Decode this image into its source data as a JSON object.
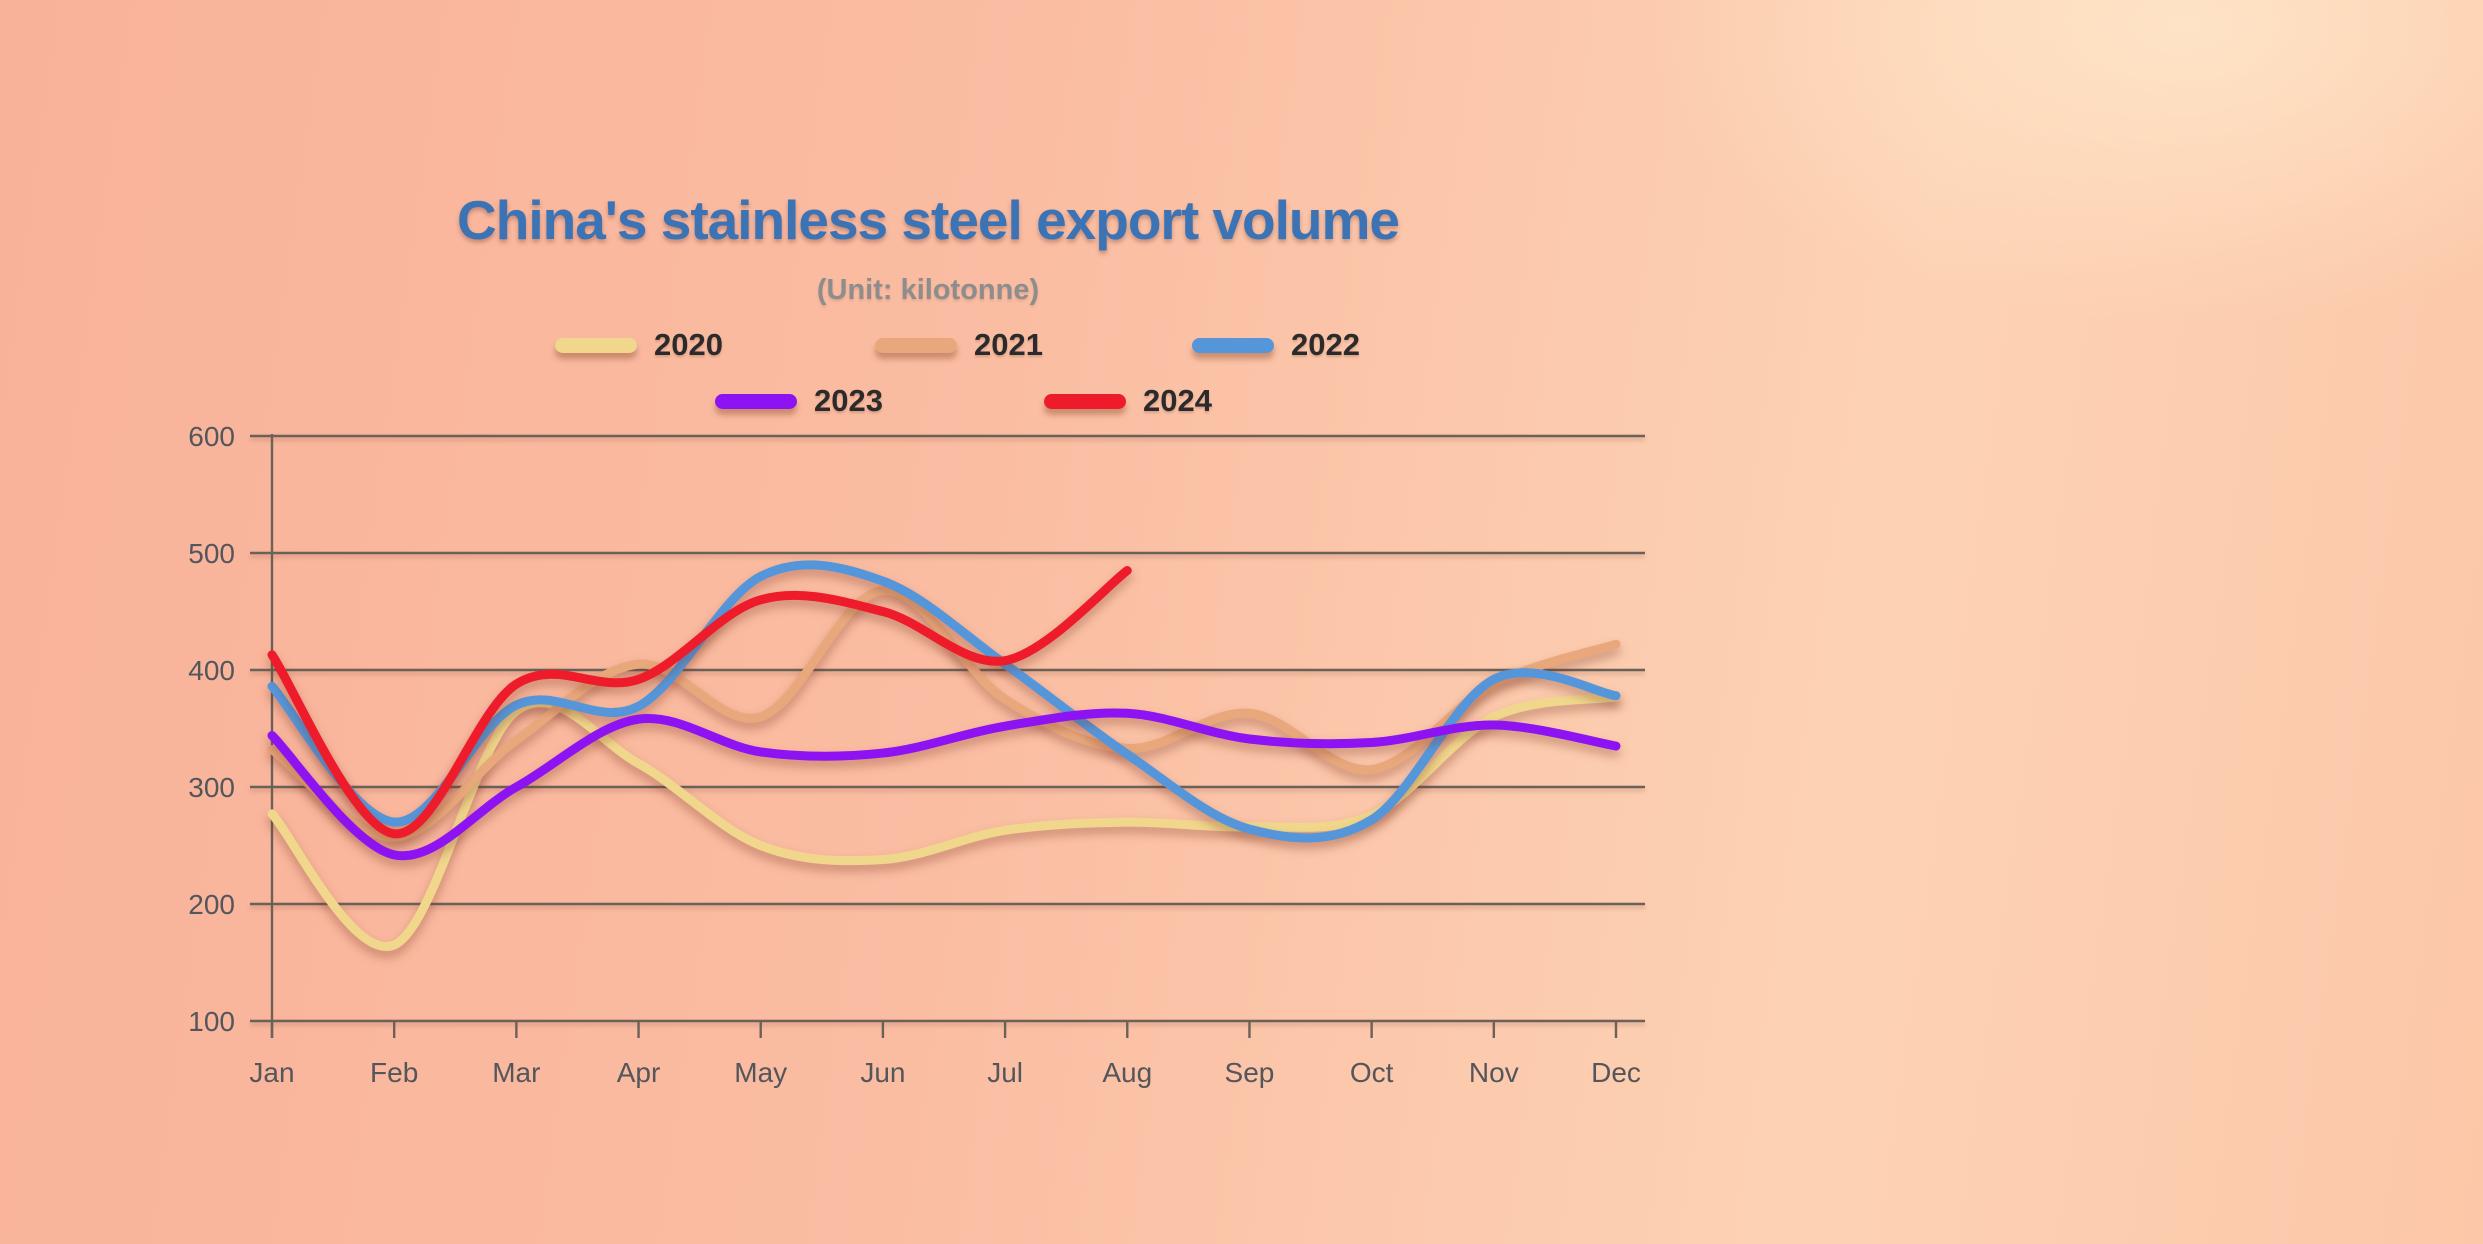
{
  "chart": {
    "title": "China's stainless steel export volume",
    "subtitle": "(Unit: kilotonne)"
  },
  "chart_data": {
    "type": "line",
    "title": "China's stainless steel export volume",
    "subtitle": "(Unit: kilotonne)",
    "xlabel": "",
    "ylabel": "",
    "categories": [
      "Jan",
      "Feb",
      "Mar",
      "Apr",
      "May",
      "Jun",
      "Jul",
      "Aug",
      "Sep",
      "Oct",
      "Nov",
      "Dec"
    ],
    "ylim": [
      100,
      600
    ],
    "yticks": [
      100,
      200,
      300,
      400,
      500,
      600
    ],
    "grid": true,
    "legend_position": "top",
    "series": [
      {
        "name": "2020",
        "color": "#f0d78c",
        "values": [
          277,
          165,
          365,
          320,
          250,
          238,
          263,
          270,
          266,
          276,
          360,
          377
        ]
      },
      {
        "name": "2021",
        "color": "#e9a87c",
        "values": [
          332,
          257,
          340,
          405,
          360,
          468,
          375,
          333,
          363,
          315,
          388,
          422
        ]
      },
      {
        "name": "2022",
        "color": "#5596da",
        "values": [
          386,
          270,
          370,
          369,
          480,
          476,
          405,
          328,
          264,
          272,
          392,
          378
        ]
      },
      {
        "name": "2023",
        "color": "#8d13f2",
        "values": [
          344,
          242,
          300,
          358,
          330,
          329,
          352,
          363,
          341,
          338,
          353,
          335
        ]
      },
      {
        "name": "2024",
        "color": "#ee1c2b",
        "values": [
          413,
          260,
          388,
          392,
          460,
          450,
          408,
          485
        ]
      }
    ]
  },
  "colors": {
    "title": "#3c73b5",
    "subtitle": "#8d8d8d",
    "axis_text": "#54565b",
    "gridline": "#6b6159",
    "legend_text": "#2b2b2b",
    "background_left": "#f9b29a",
    "background_right": "#fcc7a8"
  }
}
